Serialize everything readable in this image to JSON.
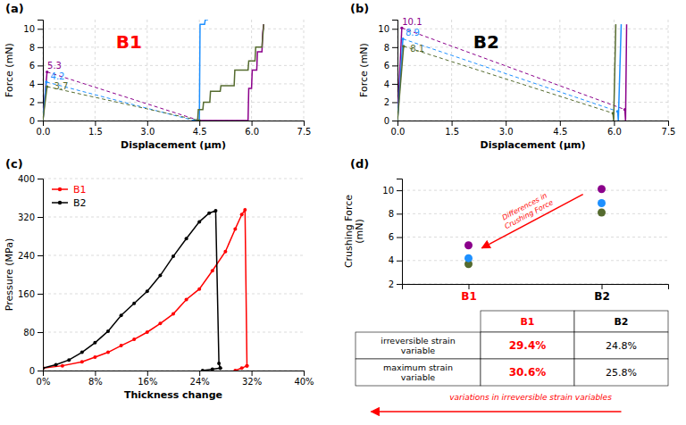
{
  "chart_data": [
    {
      "type": "line",
      "title": "(a)",
      "xlabel": "Displacement (μm)",
      "ylabel": "Force (mN)",
      "xlim": [
        0,
        7.5
      ],
      "ylim": [
        0,
        11
      ],
      "xticks": [
        {
          "value": 0,
          "label": "0.0"
        },
        1.5,
        {
          "value": 3,
          "label": "3.0"
        },
        4.5,
        {
          "value": 6,
          "label": "6.0"
        },
        7.5
      ],
      "yticks": [
        0,
        2,
        4,
        6,
        8,
        10
      ],
      "grid": true,
      "series": [
        {
          "color": "#8B008B",
          "line_style": "solid",
          "x": [
            0.0,
            0.12
          ],
          "values": [
            0,
            5.3
          ]
        },
        {
          "color": "#8B008B",
          "line_style": "dashed",
          "marker": "dot",
          "x": [
            0.12,
            4.5
          ],
          "values": [
            5.3,
            0
          ]
        },
        {
          "color": "#8B008B",
          "line_style": "solid",
          "x": [
            4.5,
            5.9,
            5.92,
            6.0,
            6.02,
            6.15,
            6.17,
            6.3,
            6.32,
            6.35
          ],
          "values": [
            0,
            0,
            3.5,
            3.5,
            5.5,
            5.5,
            7.5,
            7.5,
            9.5,
            10.5
          ]
        },
        {
          "color": "#1E90FF",
          "line_style": "solid",
          "x": [
            0.0,
            0.1
          ],
          "values": [
            0,
            4.2
          ]
        },
        {
          "color": "#1E90FF",
          "line_style": "dashed",
          "marker": "dot",
          "x": [
            0.1,
            4.35
          ],
          "values": [
            4.2,
            0
          ]
        },
        {
          "color": "#1E90FF",
          "line_style": "solid",
          "x": [
            4.35,
            4.5,
            4.52,
            4.65,
            4.67,
            4.75
          ],
          "values": [
            0,
            0,
            10.5,
            10.5,
            11.0,
            11.0
          ]
        },
        {
          "color": "#556B2F",
          "line_style": "solid",
          "x": [
            0.0,
            0.12
          ],
          "values": [
            0,
            3.7
          ]
        },
        {
          "color": "#556B2F",
          "line_style": "dashed",
          "marker": "dot",
          "x": [
            0.12,
            4.5
          ],
          "values": [
            3.7,
            0
          ]
        },
        {
          "color": "#556B2F",
          "line_style": "solid",
          "x": [
            4.45,
            4.47,
            4.6,
            4.62,
            4.8,
            4.82,
            5.1,
            5.12,
            5.5,
            5.52,
            5.9,
            5.92,
            6.1,
            6.12,
            6.3,
            6.35
          ],
          "values": [
            0,
            1.2,
            1.2,
            2.0,
            2.0,
            3.2,
            3.2,
            3.8,
            3.8,
            5.5,
            5.5,
            6.5,
            6.5,
            8.0,
            8.0,
            10.5
          ]
        }
      ],
      "annotations": [
        {
          "text": "B1",
          "color": "#FF0000"
        },
        {
          "text": "5.3",
          "color": "#8B008B",
          "x": 0.13,
          "y": 5.6
        },
        {
          "text": "4.2",
          "color": "#1E90FF",
          "x": 0.22,
          "y": 4.5
        },
        {
          "text": "3.7",
          "color": "#556B2F",
          "x": 0.32,
          "y": 3.4
        }
      ]
    },
    {
      "type": "line",
      "title": "(b)",
      "xlabel": "Displacement (μm)",
      "ylabel": "Force (mN)",
      "xlim": [
        0,
        7.5
      ],
      "ylim": [
        0,
        11
      ],
      "xticks": [
        {
          "value": 0,
          "label": "0.0"
        },
        1.5,
        {
          "value": 3,
          "label": "3.0"
        },
        4.5,
        {
          "value": 6,
          "label": "6.0"
        },
        7.5
      ],
      "yticks": [
        0,
        2,
        4,
        6,
        8,
        10
      ],
      "grid": true,
      "series": [
        {
          "color": "#8B008B",
          "line_style": "solid",
          "x": [
            0.0,
            0.12
          ],
          "values": [
            0,
            10.1
          ]
        },
        {
          "color": "#8B008B",
          "line_style": "dashed",
          "marker": "dot",
          "x": [
            0.12,
            6.3
          ],
          "values": [
            10.1,
            1.2
          ]
        },
        {
          "color": "#8B008B",
          "line_style": "solid",
          "x": [
            6.3,
            6.32,
            6.35
          ],
          "values": [
            1.2,
            0,
            10.5
          ]
        },
        {
          "color": "#1E90FF",
          "line_style": "solid",
          "x": [
            0.0,
            0.15
          ],
          "values": [
            0,
            8.9
          ]
        },
        {
          "color": "#1E90FF",
          "line_style": "dashed",
          "marker": "dot",
          "x": [
            0.15,
            6.1
          ],
          "values": [
            8.9,
            1.0
          ]
        },
        {
          "color": "#1E90FF",
          "line_style": "solid",
          "x": [
            6.1,
            6.12,
            6.2
          ],
          "values": [
            1.0,
            0,
            10.5
          ]
        },
        {
          "color": "#556B2F",
          "line_style": "solid",
          "x": [
            0.0,
            0.17
          ],
          "values": [
            0,
            8.1
          ]
        },
        {
          "color": "#556B2F",
          "line_style": "dashed",
          "marker": "dot",
          "x": [
            0.17,
            5.97
          ],
          "values": [
            8.1,
            0.8
          ]
        },
        {
          "color": "#556B2F",
          "line_style": "solid",
          "x": [
            5.97,
            5.99,
            6.05
          ],
          "values": [
            0.8,
            0,
            10.5
          ]
        }
      ],
      "annotations": [
        {
          "text": "B2",
          "color": "#000000"
        },
        {
          "text": "10.1",
          "color": "#8B008B",
          "x": 0.13,
          "y": 10.4
        },
        {
          "text": "8.9",
          "color": "#1E90FF",
          "x": 0.22,
          "y": 9.2
        },
        {
          "text": "8.1",
          "color": "#556B2F",
          "x": 0.35,
          "y": 7.5
        }
      ]
    },
    {
      "type": "line",
      "title": "(c)",
      "xlabel": "Thickness change",
      "ylabel": "Pressure (MPa)",
      "xlim": [
        0,
        0.4
      ],
      "ylim": [
        0,
        400
      ],
      "xticks": [
        {
          "value": 0,
          "label": "0%"
        },
        {
          "value": 0.08,
          "label": "8%"
        },
        {
          "value": 0.16,
          "label": "16%"
        },
        {
          "value": 0.24,
          "label": "24%"
        },
        {
          "value": 0.32,
          "label": "32%"
        },
        {
          "value": 0.4,
          "label": "40%"
        }
      ],
      "yticks": [
        0,
        80,
        160,
        240,
        320,
        400
      ],
      "grid": "y",
      "legend": "upper left",
      "series": [
        {
          "name": "B1",
          "color": "#FF0000",
          "line_style": "solid",
          "marker": "dot",
          "x": [
            0,
            0.03,
            0.06,
            0.08,
            0.1,
            0.12,
            0.14,
            0.16,
            0.18,
            0.2,
            0.22,
            0.24,
            0.26,
            0.28,
            0.295,
            0.305,
            0.31,
            0.313,
            0.313,
            0.305,
            0.295
          ],
          "values": [
            5,
            10,
            18,
            28,
            38,
            52,
            65,
            80,
            98,
            118,
            148,
            170,
            208,
            248,
            295,
            325,
            335,
            10,
            10,
            5,
            0
          ]
        },
        {
          "name": "B2",
          "color": "#000000",
          "line_style": "solid",
          "marker": "dot",
          "x": [
            0,
            0.02,
            0.04,
            0.06,
            0.08,
            0.1,
            0.12,
            0.14,
            0.16,
            0.18,
            0.2,
            0.22,
            0.24,
            0.255,
            0.265,
            0.27,
            0.272,
            0.272,
            0.26,
            0.245
          ],
          "values": [
            5,
            12,
            22,
            38,
            58,
            82,
            115,
            140,
            165,
            198,
            238,
            275,
            310,
            328,
            333,
            15,
            5,
            5,
            3,
            0
          ]
        }
      ]
    },
    {
      "type": "scatter",
      "title": "(d)",
      "ylabel": "Crushing Force\n(mN)",
      "categories": [
        "B1",
        "B2"
      ],
      "ylim": [
        2,
        11
      ],
      "yticks": [
        2,
        4,
        6,
        8,
        10
      ],
      "grid": "y",
      "series": [
        {
          "color": "#556B2F",
          "values": [
            3.7,
            8.1
          ]
        },
        {
          "color": "#1E90FF",
          "values": [
            4.2,
            8.9
          ]
        },
        {
          "color": "#8B008B",
          "values": [
            5.3,
            10.1
          ]
        }
      ],
      "annotations": [
        {
          "text": "Differences in\nCrushing Force",
          "color": "#FF0000"
        }
      ]
    },
    {
      "type": "table",
      "categories": [
        "irreversible strain\nvariable",
        "maximum strain\nvariable"
      ],
      "series": [
        {
          "name": "B1",
          "color": "#FF0000",
          "values": [
            29.4,
            30.6
          ],
          "value_labels": [
            "29.4%",
            "30.6%"
          ]
        },
        {
          "name": "B2",
          "color": "#000000",
          "values": [
            24.8,
            25.8
          ],
          "value_labels": [
            "24.8%",
            "25.8%"
          ]
        }
      ],
      "annotations": [
        {
          "text": "variations in irreversible strain variables",
          "color": "#FF0000"
        }
      ]
    }
  ]
}
